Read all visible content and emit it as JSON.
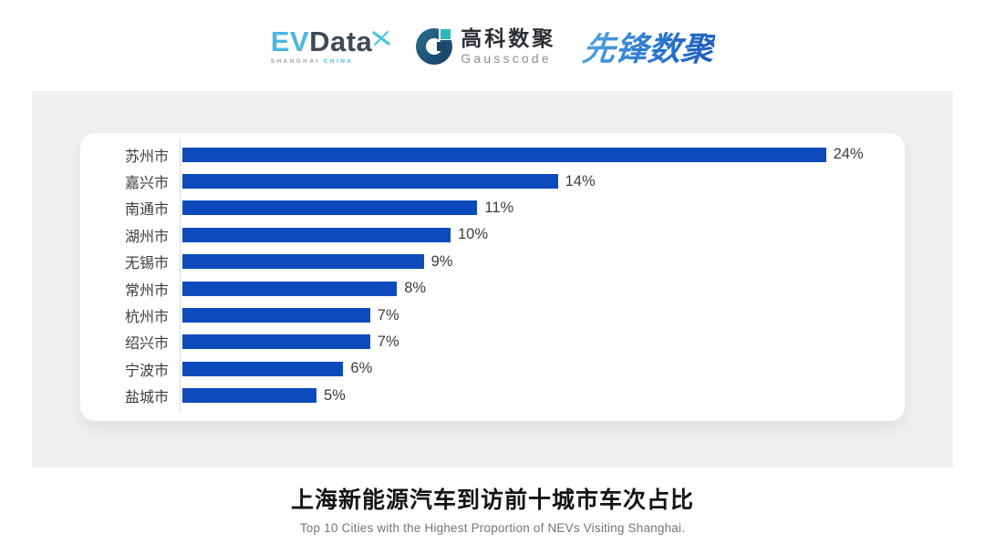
{
  "header": {
    "logos": {
      "evdata": {
        "main_left": "EV",
        "main_right": "Data",
        "sub_left": "SHANGHAI",
        "sub_right": "CHINA",
        "accent_color": "#4db6e4",
        "dark_color": "#3e4a59"
      },
      "gausscode": {
        "cn": "高科数聚",
        "en": "Gausscode",
        "icon_color": "#1b4666",
        "icon_accent": "#2fb7bc"
      },
      "pioneer": {
        "text": "先锋数聚",
        "color": "#2f7ed2"
      }
    }
  },
  "chart_data": {
    "type": "bar",
    "orientation": "horizontal",
    "title": "上海新能源汽车到访前十城市车次占比",
    "subtitle": "Top 10 Cities with the Highest Proportion of  NEVs Visiting Shanghai.",
    "categories": [
      "苏州市",
      "嘉兴市",
      "南通市",
      "湖州市",
      "无锡市",
      "常州市",
      "杭州市",
      "绍兴市",
      "宁波市",
      "盐城市"
    ],
    "values": [
      24,
      14,
      11,
      10,
      9,
      8,
      7,
      7,
      6,
      5
    ],
    "value_labels": [
      "24%",
      "14%",
      "11%",
      "10%",
      "9%",
      "8%",
      "7%",
      "7%",
      "6%",
      "5%"
    ],
    "xlabel": "",
    "ylabel": "",
    "xlim": [
      0,
      24
    ],
    "unit": "%",
    "grid": false,
    "legend": false,
    "bar_color": "#0d4bbd",
    "axis_line_color": "#dcdcdc",
    "label_color": "#3c3c3c",
    "background_panel_color": "#f0f0f1",
    "card_color": "#ffffff"
  },
  "footer": {
    "title": "上海新能源汽车到访前十城市车次占比",
    "subtitle": "Top 10 Cities with the Highest Proportion of  NEVs Visiting Shanghai."
  }
}
